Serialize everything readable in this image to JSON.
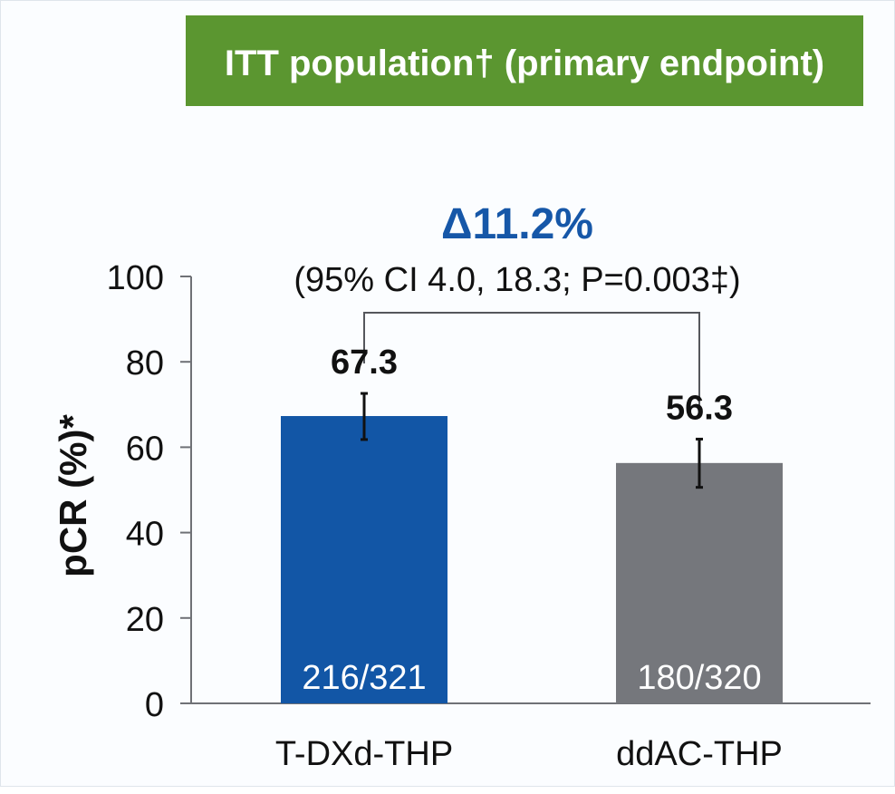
{
  "chart_data": {
    "type": "bar",
    "panel_title": "ITT population† (primary endpoint)",
    "ylabel": "pCR (%)*",
    "ylim": [
      0,
      100
    ],
    "yticks": [
      0,
      20,
      40,
      60,
      80,
      100
    ],
    "yticklabels": [
      "0",
      "20",
      "40",
      "60",
      "80",
      "100"
    ],
    "categories": [
      "T-DXd-THP",
      "ddAC-THP"
    ],
    "values": [
      67.3,
      56.3
    ],
    "value_labels": [
      "67.3",
      "56.3"
    ],
    "counts": [
      "216/321",
      "180/320"
    ],
    "error_bars": [
      {
        "low": 61.8,
        "high": 72.6
      },
      {
        "low": 50.6,
        "high": 61.9
      }
    ],
    "colors": [
      "#1256a6",
      "#75777c"
    ],
    "comparison": {
      "delta": "Δ11.2%",
      "ci_text": "(95% CI 4.0, 18.3; P=0.003‡)",
      "bracket_ends": [
        67.3,
        56.3
      ]
    },
    "theme": {
      "title_bg": "#5b9630",
      "title_fg": "#ffffff",
      "delta_color": "#1657a8",
      "text_color": "#111111"
    }
  }
}
